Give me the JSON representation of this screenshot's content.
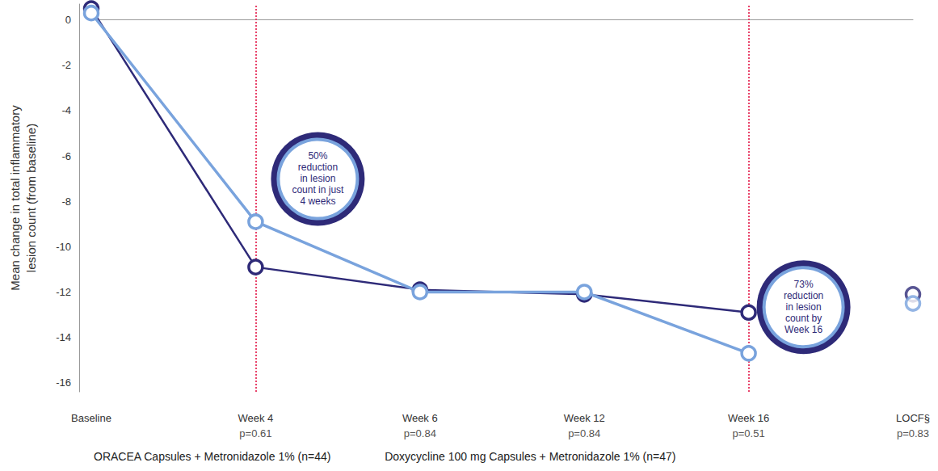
{
  "chart_data": {
    "type": "line",
    "categories": [
      "Baseline",
      "Week 4",
      "Week 6",
      "Week 12",
      "Week 16",
      "LOCF§"
    ],
    "p_labels": [
      null,
      "p=0.61",
      "p=0.84",
      "p=0.84",
      "p=0.51",
      "p=0.83"
    ],
    "y_label": "Mean change in total inflammatory\nlesion count (from baseline)",
    "ylim": [
      -16.4,
      0.7
    ],
    "yticks": [
      -16,
      -14,
      -12,
      -10,
      -8,
      -6,
      -4,
      -2,
      0
    ],
    "grid": false,
    "legend": "bottom left",
    "marker": "circle",
    "series": [
      {
        "name": "ORACEA Capsules + Metronidazole 1% (n=44)",
        "color": "#79a3dd",
        "values": [
          0.3,
          -8.9,
          -12.0,
          -12.0,
          -14.7,
          null
        ],
        "locf": -12.5
      },
      {
        "name": "Doxycycline 100 mg Capsules + Metronidazole 1% (n=47)",
        "color": "#2e2a78",
        "values": [
          0.5,
          -10.9,
          -11.9,
          -12.1,
          -12.9,
          null
        ],
        "locf": -12.1
      }
    ],
    "reference_lines": [
      "Week 4",
      "Week 16"
    ],
    "annotations": [
      {
        "text": "50%\nreduction\nin lesion\ncount in just\n4 weeks",
        "category": "Week 4",
        "series": "ORACEA Capsules + Metronidazole 1% (n=44)"
      },
      {
        "text": "73%\nreduction\nin lesion\ncount by\nWeek 16",
        "category": "Week 16",
        "series": "ORACEA Capsules + Metronidazole 1% (n=44)"
      }
    ]
  }
}
